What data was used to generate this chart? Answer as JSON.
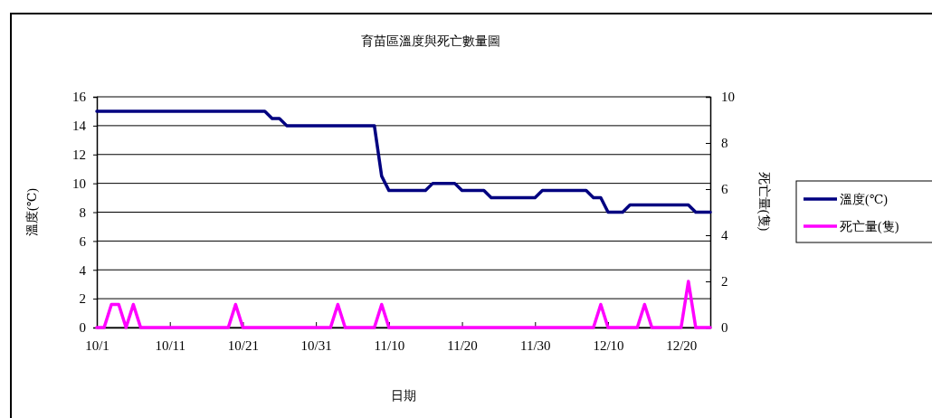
{
  "chart_data": {
    "type": "line",
    "title": "育苗區溫度與死亡數量圖",
    "xlabel": "日期",
    "ylabel": "溫度(℃)",
    "y2label": "死亡量(隻)",
    "xlim": [
      "--10-01",
      "--12-24"
    ],
    "xticks": [
      {
        "value": "--10-01",
        "label": "10/1"
      },
      {
        "value": "--10-11",
        "label": "10/11"
      },
      {
        "value": "--10-21",
        "label": "10/21"
      },
      {
        "value": "--10-31",
        "label": "10/31"
      },
      {
        "value": "--11-10",
        "label": "11/10"
      },
      {
        "value": "--11-20",
        "label": "11/20"
      },
      {
        "value": "--11-30",
        "label": "11/30"
      },
      {
        "value": "--12-10",
        "label": "12/10"
      },
      {
        "value": "--12-20",
        "label": "12/20"
      }
    ],
    "ylim": [
      0,
      16
    ],
    "yticks": [
      0,
      2,
      4,
      6,
      8,
      10,
      12,
      14,
      16
    ],
    "y2lim": [
      0,
      10
    ],
    "y2ticks": [
      0,
      2,
      4,
      6,
      8,
      10
    ],
    "grid": "y",
    "legend": "right",
    "marker": "none",
    "line_style": "solid",
    "series": [
      {
        "name": "溫度(℃)",
        "color": "#000080",
        "x": [
          "--10-01",
          "--10-24",
          "--10-25",
          "--10-26",
          "--10-27",
          "--11-08",
          "--11-09",
          "--11-10",
          "--11-15",
          "--11-16",
          "--11-19",
          "--11-20",
          "--11-23",
          "--11-24",
          "--11-30",
          "--12-01",
          "--12-07",
          "--12-08",
          "--12-09",
          "--12-10",
          "--12-12",
          "--12-13",
          "--12-21",
          "--12-22",
          "--12-24"
        ],
        "values": [
          15,
          15,
          14.5,
          14.5,
          14,
          14,
          10.5,
          9.5,
          9.5,
          10,
          10,
          9.5,
          9.5,
          9,
          9,
          9.5,
          9.5,
          9,
          9,
          8,
          8,
          8.5,
          8.5,
          8,
          8
        ]
      },
      {
        "name": "死亡量(隻)",
        "color": "#ff00ff",
        "axis": "y2",
        "x": [
          "--10-01",
          "--10-02",
          "--10-03",
          "--10-04",
          "--10-05",
          "--10-06",
          "--10-07",
          "--10-19",
          "--10-20",
          "--10-21",
          "--11-02",
          "--11-03",
          "--11-04",
          "--11-08",
          "--11-09",
          "--11-10",
          "--12-08",
          "--12-09",
          "--12-10",
          "--12-14",
          "--12-15",
          "--12-16",
          "--12-20",
          "--12-21",
          "--12-22",
          "--12-24"
        ],
        "values": [
          0,
          0,
          1,
          1,
          0,
          1,
          0,
          0,
          1,
          0,
          0,
          1,
          0,
          0,
          1,
          0,
          0,
          1,
          0,
          0,
          1,
          0,
          0,
          2,
          0,
          0
        ]
      }
    ]
  }
}
